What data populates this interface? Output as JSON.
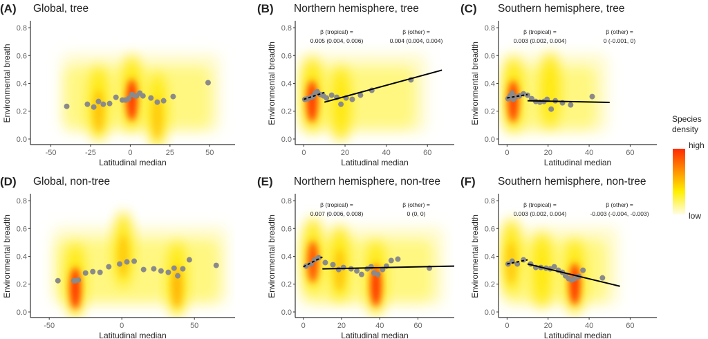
{
  "chart_data": [
    {
      "type": "scatter",
      "panel": "A",
      "title": "Global, tree",
      "xlabel": "Latitudinal median",
      "ylabel": "Environmental breath",
      "xlim": [
        -62,
        66
      ],
      "ylim": [
        -0.04,
        0.84
      ],
      "xticks": [
        -50,
        -25,
        0,
        25,
        50
      ],
      "yticks": [
        0.0,
        0.2,
        0.4,
        0.6,
        0.8
      ],
      "points": [
        [
          -40,
          0.235
        ],
        [
          -27,
          0.25
        ],
        [
          -23,
          0.23
        ],
        [
          -20,
          0.27
        ],
        [
          -17,
          0.25
        ],
        [
          -13,
          0.255
        ],
        [
          -9,
          0.3
        ],
        [
          -5,
          0.28
        ],
        [
          -3,
          0.28
        ],
        [
          -1,
          0.29
        ],
        [
          1,
          0.32
        ],
        [
          3,
          0.31
        ],
        [
          4,
          0.31
        ],
        [
          6,
          0.33
        ],
        [
          8,
          0.31
        ],
        [
          13,
          0.295
        ],
        [
          17,
          0.265
        ],
        [
          21,
          0.275
        ],
        [
          27,
          0.305
        ],
        [
          49,
          0.405
        ]
      ],
      "density_hotspots": [
        [
          -20,
          0.2,
          0.45
        ],
        [
          1,
          0.28,
          1.0
        ],
        [
          17,
          0.15,
          0.35
        ]
      ],
      "annotations": []
    },
    {
      "type": "scatter",
      "panel": "B",
      "title": "Northern hemisphere, tree",
      "xlabel": "Latitudinal median",
      "ylabel": "Environmental breadth",
      "xlim": [
        -3.5,
        73
      ],
      "ylim": [
        -0.04,
        0.84
      ],
      "xticks": [
        0,
        20,
        40,
        60
      ],
      "yticks": [
        0.0,
        0.2,
        0.4,
        0.6,
        0.8
      ],
      "points": [
        [
          0.5,
          0.285
        ],
        [
          2,
          0.29
        ],
        [
          3.5,
          0.3
        ],
        [
          4.5,
          0.305
        ],
        [
          5.5,
          0.33
        ],
        [
          6.5,
          0.34
        ],
        [
          8,
          0.32
        ],
        [
          9.5,
          0.31
        ],
        [
          11,
          0.295
        ],
        [
          13.5,
          0.315
        ],
        [
          16,
          0.3
        ],
        [
          18,
          0.25
        ],
        [
          20.5,
          0.295
        ],
        [
          23.5,
          0.285
        ],
        [
          27.5,
          0.315
        ],
        [
          33,
          0.35
        ],
        [
          52,
          0.425
        ]
      ],
      "density_hotspots": [
        [
          4,
          0.27,
          1.0
        ],
        [
          18,
          0.2,
          0.3
        ]
      ],
      "fits": [
        {
          "name": "tropical",
          "style": "dashed",
          "x": [
            0,
            10
          ],
          "y": [
            0.285,
            0.335
          ]
        },
        {
          "name": "other",
          "style": "solid",
          "x": [
            10,
            67
          ],
          "y": [
            0.265,
            0.495
          ]
        }
      ],
      "annotations": [
        {
          "line1": "β (tropical) =",
          "line2": "0.005 (0.004, 0.006)"
        },
        {
          "line1": "β (other) =",
          "line2": "0.004 (0.004, 0.004)"
        }
      ]
    },
    {
      "type": "scatter",
      "panel": "C",
      "title": "Southern hemisphere, tree",
      "xlabel": "Latitudinal median",
      "ylabel": "Environmental breadth",
      "xlim": [
        -3.5,
        73
      ],
      "ylim": [
        -0.04,
        0.84
      ],
      "xticks": [
        0,
        20,
        40,
        60
      ],
      "yticks": [
        0.0,
        0.2,
        0.4,
        0.6,
        0.8
      ],
      "points": [
        [
          0.5,
          0.29
        ],
        [
          1.5,
          0.31
        ],
        [
          2.5,
          0.33
        ],
        [
          3,
          0.285
        ],
        [
          4,
          0.3
        ],
        [
          6,
          0.31
        ],
        [
          8,
          0.325
        ],
        [
          10,
          0.315
        ],
        [
          12,
          0.29
        ],
        [
          14,
          0.27
        ],
        [
          16,
          0.265
        ],
        [
          18,
          0.27
        ],
        [
          19.5,
          0.285
        ],
        [
          21.5,
          0.215
        ],
        [
          23.5,
          0.275
        ],
        [
          27,
          0.26
        ],
        [
          31,
          0.245
        ],
        [
          41.5,
          0.305
        ]
      ],
      "density_hotspots": [
        [
          3,
          0.27,
          0.95
        ],
        [
          21,
          0.3,
          0.3
        ]
      ],
      "fits": [
        {
          "name": "tropical",
          "style": "dashed",
          "x": [
            0,
            10
          ],
          "y": [
            0.295,
            0.32
          ]
        },
        {
          "name": "other",
          "style": "solid",
          "x": [
            10,
            50
          ],
          "y": [
            0.275,
            0.263
          ]
        }
      ],
      "annotations": [
        {
          "line1": "β (tropical) =",
          "line2": "0.003 (0.002, 0.004)"
        },
        {
          "line1": "β (other) =",
          "line2": "0 (-0.001, 0)"
        }
      ]
    },
    {
      "type": "scatter",
      "panel": "D",
      "title": "Global, non-tree",
      "xlabel": "Latitudinal median",
      "ylabel": "Environmental breadth",
      "xlim": [
        -62,
        78
      ],
      "ylim": [
        -0.04,
        0.84
      ],
      "xticks": [
        -50,
        0,
        50
      ],
      "yticks": [
        0.0,
        0.2,
        0.4,
        0.6,
        0.8
      ],
      "points": [
        [
          -44,
          0.225
        ],
        [
          -33,
          0.225
        ],
        [
          -32,
          0.225
        ],
        [
          -30,
          0.23
        ],
        [
          -25,
          0.28
        ],
        [
          -20,
          0.29
        ],
        [
          -15,
          0.285
        ],
        [
          -9,
          0.325
        ],
        [
          -1.5,
          0.345
        ],
        [
          3.5,
          0.36
        ],
        [
          8.5,
          0.365
        ],
        [
          15,
          0.305
        ],
        [
          22,
          0.31
        ],
        [
          27,
          0.295
        ],
        [
          32,
          0.285
        ],
        [
          36,
          0.315
        ],
        [
          38.5,
          0.26
        ],
        [
          42,
          0.31
        ],
        [
          46.5,
          0.375
        ],
        [
          65,
          0.335
        ]
      ],
      "density_hotspots": [
        [
          -32,
          0.17,
          1.0
        ],
        [
          1,
          0.4,
          0.35
        ],
        [
          38,
          0.18,
          0.6
        ]
      ],
      "annotations": []
    },
    {
      "type": "scatter",
      "panel": "E",
      "title": "Northern hemisphere, non-tree",
      "xlabel": "Latitudinal median",
      "ylabel": "Environmental breadth",
      "xlim": [
        -3.5,
        79
      ],
      "ylim": [
        -0.04,
        0.84
      ],
      "xticks": [
        0,
        20,
        40,
        60
      ],
      "yticks": [
        0.0,
        0.2,
        0.4,
        0.6,
        0.8
      ],
      "points": [
        [
          1.5,
          0.33
        ],
        [
          4,
          0.345
        ],
        [
          6,
          0.375
        ],
        [
          8,
          0.39
        ],
        [
          11.5,
          0.355
        ],
        [
          15.5,
          0.34
        ],
        [
          18.5,
          0.305
        ],
        [
          21,
          0.32
        ],
        [
          25,
          0.31
        ],
        [
          28,
          0.295
        ],
        [
          30.5,
          0.27
        ],
        [
          33.5,
          0.31
        ],
        [
          35.5,
          0.325
        ],
        [
          37,
          0.28
        ],
        [
          39,
          0.27
        ],
        [
          41.5,
          0.305
        ],
        [
          43.5,
          0.33
        ],
        [
          46,
          0.37
        ],
        [
          49.5,
          0.38
        ],
        [
          66,
          0.315
        ]
      ],
      "density_hotspots": [
        [
          5,
          0.36,
          0.85
        ],
        [
          19,
          0.3,
          0.4
        ],
        [
          38,
          0.19,
          1.0
        ]
      ],
      "fits": [
        {
          "name": "tropical",
          "style": "dashed",
          "x": [
            0,
            10
          ],
          "y": [
            0.325,
            0.395
          ]
        },
        {
          "name": "other",
          "style": "solid",
          "x": [
            10,
            79
          ],
          "y": [
            0.31,
            0.33
          ]
        }
      ],
      "annotations": [
        {
          "line1": "β (tropical) =",
          "line2": "0.007 (0.006, 0.008)"
        },
        {
          "line1": "β (other) =",
          "line2": "0 (0, 0)"
        }
      ]
    },
    {
      "type": "scatter",
      "panel": "F",
      "title": "Southern hemisphere, non-tree",
      "xlabel": "Latitudinal median",
      "ylabel": "Environmental breadth",
      "xlim": [
        -3.5,
        73
      ],
      "ylim": [
        -0.04,
        0.84
      ],
      "xticks": [
        0,
        20,
        40,
        60
      ],
      "yticks": [
        0.0,
        0.2,
        0.4,
        0.6,
        0.8
      ],
      "points": [
        [
          0.5,
          0.345
        ],
        [
          2.5,
          0.365
        ],
        [
          5,
          0.345
        ],
        [
          8,
          0.375
        ],
        [
          11.5,
          0.345
        ],
        [
          14,
          0.32
        ],
        [
          16.5,
          0.32
        ],
        [
          19,
          0.315
        ],
        [
          21,
          0.31
        ],
        [
          23,
          0.325
        ],
        [
          25,
          0.3
        ],
        [
          27,
          0.285
        ],
        [
          28.5,
          0.26
        ],
        [
          30,
          0.24
        ],
        [
          31.5,
          0.23
        ],
        [
          33,
          0.24
        ],
        [
          35,
          0.255
        ],
        [
          37,
          0.3
        ],
        [
          46.5,
          0.245
        ]
      ],
      "density_hotspots": [
        [
          33,
          0.2,
          1.0
        ],
        [
          2,
          0.35,
          0.35
        ],
        [
          17,
          0.25,
          0.3
        ]
      ],
      "fits": [
        {
          "name": "tropical",
          "style": "dashed",
          "x": [
            0,
            10
          ],
          "y": [
            0.345,
            0.375
          ]
        },
        {
          "name": "other",
          "style": "solid",
          "x": [
            10,
            55
          ],
          "y": [
            0.345,
            0.185
          ]
        }
      ],
      "annotations": [
        {
          "line1": "β (tropical) =",
          "line2": "0.003 (0.002, 0.004)"
        },
        {
          "line1": "β (other) =",
          "line2": "-0.003 (-0.004, -0.003)"
        }
      ]
    }
  ],
  "legend": {
    "title_line1": "Species",
    "title_line2": "density",
    "high_label": "high",
    "low_label": "low",
    "placement": "right",
    "colors": [
      "#ff2a00",
      "#ff8c00",
      "#ffee00",
      "#fffde0"
    ]
  },
  "colors": {
    "point": "#8a8a8a",
    "fit_line": "#000000",
    "axis": "#333333"
  }
}
